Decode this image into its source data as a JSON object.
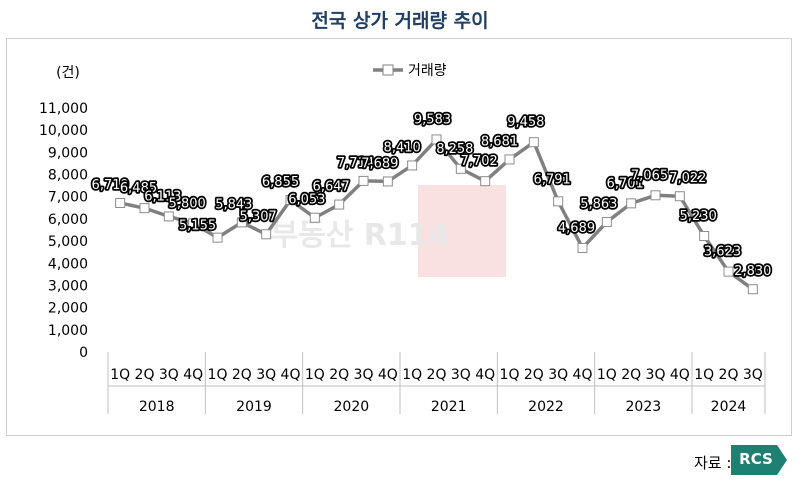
{
  "title": "전국 상가 거래량 추이",
  "source_label": "자료 :",
  "source_badge": "RCS",
  "watermark": "부동산 R114",
  "colors": {
    "title": "#1f3f64",
    "line": "#808080",
    "marker_fill": "#ffffff",
    "badge": "#1e7f73"
  },
  "chart_data": {
    "type": "line",
    "y_unit": "(건)",
    "ylim": [
      0,
      11000
    ],
    "y_ticks": [
      0,
      1000,
      2000,
      3000,
      4000,
      5000,
      6000,
      7000,
      8000,
      9000,
      10000,
      11000
    ],
    "y_tick_labels": [
      "0",
      "1,000",
      "2,000",
      "3,000",
      "4,000",
      "5,000",
      "6,000",
      "7,000",
      "8,000",
      "9,000",
      "10,000",
      "11,000"
    ],
    "grid": false,
    "legend_position": "top-center",
    "years": [
      {
        "label": "2018",
        "quarters": [
          "1Q",
          "2Q",
          "3Q",
          "4Q"
        ]
      },
      {
        "label": "2019",
        "quarters": [
          "1Q",
          "2Q",
          "3Q",
          "4Q"
        ]
      },
      {
        "label": "2020",
        "quarters": [
          "1Q",
          "2Q",
          "3Q",
          "4Q"
        ]
      },
      {
        "label": "2021",
        "quarters": [
          "1Q",
          "2Q",
          "3Q",
          "4Q"
        ]
      },
      {
        "label": "2022",
        "quarters": [
          "1Q",
          "2Q",
          "3Q",
          "4Q"
        ]
      },
      {
        "label": "2023",
        "quarters": [
          "1Q",
          "2Q",
          "3Q",
          "4Q"
        ]
      },
      {
        "label": "2024",
        "quarters": [
          "1Q",
          "2Q",
          "3Q"
        ]
      }
    ],
    "series": [
      {
        "name": "거래량",
        "values": [
          6719,
          6485,
          6113,
          5800,
          5155,
          5843,
          5307,
          6855,
          6053,
          6647,
          7714,
          7689,
          8410,
          9583,
          8258,
          7702,
          8681,
          9458,
          6791,
          4689,
          5863,
          6701,
          7065,
          7022,
          5230,
          3623,
          2830
        ],
        "labels": [
          "6,719",
          "6,485",
          "6,113",
          "5,800",
          "5,155",
          "5,843",
          "5,307",
          "6,855",
          "6,053",
          "6,647",
          "7,714",
          "7,689",
          "8,410",
          "9,583",
          "8,258",
          "7,702",
          "8,681",
          "9,458",
          "6,791",
          "4,689",
          "5,863",
          "6,701",
          "7,065",
          "7,022",
          "5,230",
          "3,623",
          "2,830"
        ]
      }
    ]
  }
}
